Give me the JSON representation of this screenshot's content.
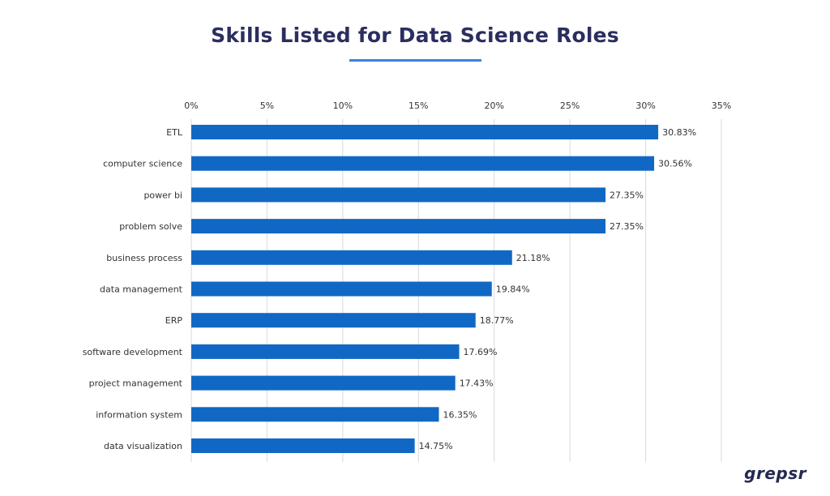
{
  "chart_data": {
    "type": "bar",
    "orientation": "horizontal",
    "title": "Skills Listed for Data Science Roles",
    "categories": [
      "ETL",
      "computer science",
      "power bi",
      "problem solve",
      "business process",
      "data management",
      "ERP",
      "software development",
      "project management",
      "information system",
      "data visualization"
    ],
    "values": [
      30.83,
      30.56,
      27.35,
      27.35,
      21.18,
      19.84,
      18.77,
      17.69,
      17.43,
      16.35,
      14.75
    ],
    "value_labels": [
      "30.83%",
      "30.56%",
      "27.35%",
      "27.35%",
      "21.18%",
      "19.84%",
      "18.77%",
      "17.69%",
      "17.43%",
      "16.35%",
      "14.75%"
    ],
    "xlim": [
      0,
      35
    ],
    "x_ticks": [
      0,
      5,
      10,
      15,
      20,
      25,
      30,
      35
    ],
    "x_tick_labels": [
      "0%",
      "5%",
      "10%",
      "15%",
      "20%",
      "25%",
      "30%",
      "35%"
    ],
    "x_axis_position": "top",
    "grid": true,
    "legend": "none",
    "colors": {
      "bar": "#1168c4",
      "grid": "#d9d9d9",
      "text": "#333333",
      "title": "#2b2e5e",
      "accent": "#3c82d8"
    }
  },
  "brand": {
    "logo_text": "grepsr"
  }
}
